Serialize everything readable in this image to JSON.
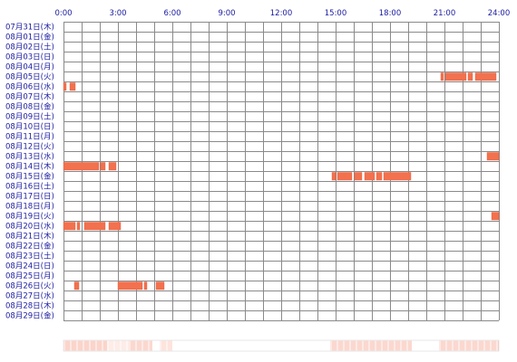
{
  "colors": {
    "background": "#ffffff",
    "grid": "#8a8a8a",
    "label_text": "#1a1aa0",
    "activity": "#f2714f",
    "activity_edge": "#e85a35",
    "heat_base": "#fbe2d8"
  },
  "chart_data": {
    "type": "heatmap",
    "title": "",
    "xlabel": "",
    "ylabel": "",
    "x_range_hours": [
      0,
      24
    ],
    "x_tick_labels": [
      "0:00",
      "3:00",
      "6:00",
      "9:00",
      "12:00",
      "15:00",
      "18:00",
      "21:00",
      "24:00"
    ],
    "grid": true,
    "days": [
      "07月31日(木)",
      "08月01日(金)",
      "08月02日(土)",
      "08月03日(日)",
      "08月04日(月)",
      "08月05日(火)",
      "08月06日(水)",
      "08月07日(木)",
      "08月08日(金)",
      "08月09日(土)",
      "08月10日(日)",
      "08月11日(月)",
      "08月12日(火)",
      "08月13日(水)",
      "08月14日(木)",
      "08月15日(金)",
      "08月16日(土)",
      "08月17日(日)",
      "08月18日(月)",
      "08月19日(火)",
      "08月20日(水)",
      "08月21日(木)",
      "08月22日(金)",
      "08月23日(土)",
      "08月24日(日)",
      "08月25日(月)",
      "08月26日(火)",
      "08月27日(水)",
      "08月28日(木)",
      "08月29日(金)"
    ],
    "activity": [
      {
        "day": "08月05日(火)",
        "start": 20.8,
        "end": 20.95
      },
      {
        "day": "08月05日(火)",
        "start": 21.05,
        "end": 22.2
      },
      {
        "day": "08月05日(火)",
        "start": 22.3,
        "end": 22.55
      },
      {
        "day": "08月05日(火)",
        "start": 22.7,
        "end": 23.85
      },
      {
        "day": "08月06日(水)",
        "start": 0.0,
        "end": 0.15
      },
      {
        "day": "08月06日(水)",
        "start": 0.35,
        "end": 0.65
      },
      {
        "day": "08月13日(水)",
        "start": 23.35,
        "end": 24.0
      },
      {
        "day": "08月14日(木)",
        "start": 0.0,
        "end": 1.95
      },
      {
        "day": "08月14日(木)",
        "start": 2.05,
        "end": 2.3
      },
      {
        "day": "08月14日(木)",
        "start": 2.5,
        "end": 2.9
      },
      {
        "day": "08月15日(金)",
        "start": 14.8,
        "end": 15.0
      },
      {
        "day": "08月15日(金)",
        "start": 15.1,
        "end": 15.9
      },
      {
        "day": "08月15日(金)",
        "start": 16.05,
        "end": 16.45
      },
      {
        "day": "08月15日(金)",
        "start": 16.6,
        "end": 17.15
      },
      {
        "day": "08月15日(金)",
        "start": 17.25,
        "end": 17.55
      },
      {
        "day": "08月15日(金)",
        "start": 17.65,
        "end": 19.15
      },
      {
        "day": "08月19日(火)",
        "start": 23.6,
        "end": 24.0
      },
      {
        "day": "08月20日(水)",
        "start": 0.0,
        "end": 0.65
      },
      {
        "day": "08月20日(水)",
        "start": 0.75,
        "end": 0.9
      },
      {
        "day": "08月20日(水)",
        "start": 1.15,
        "end": 2.3
      },
      {
        "day": "08月20日(水)",
        "start": 2.5,
        "end": 3.15
      },
      {
        "day": "08月26日(火)",
        "start": 0.6,
        "end": 0.85
      },
      {
        "day": "08月26日(火)",
        "start": 3.0,
        "end": 4.35
      },
      {
        "day": "08月26日(火)",
        "start": 4.45,
        "end": 4.6
      },
      {
        "day": "08月26日(火)",
        "start": 5.1,
        "end": 5.55
      }
    ],
    "overview_bar": {
      "segments": [
        {
          "start": 0.0,
          "end": 2.4,
          "level": 0.55
        },
        {
          "start": 2.4,
          "end": 3.6,
          "level": 0.25
        },
        {
          "start": 3.6,
          "end": 4.9,
          "level": 0.5
        },
        {
          "start": 5.3,
          "end": 6.0,
          "level": 0.35
        },
        {
          "start": 14.7,
          "end": 19.2,
          "level": 0.5
        },
        {
          "start": 20.7,
          "end": 24.0,
          "level": 0.5
        }
      ]
    }
  }
}
